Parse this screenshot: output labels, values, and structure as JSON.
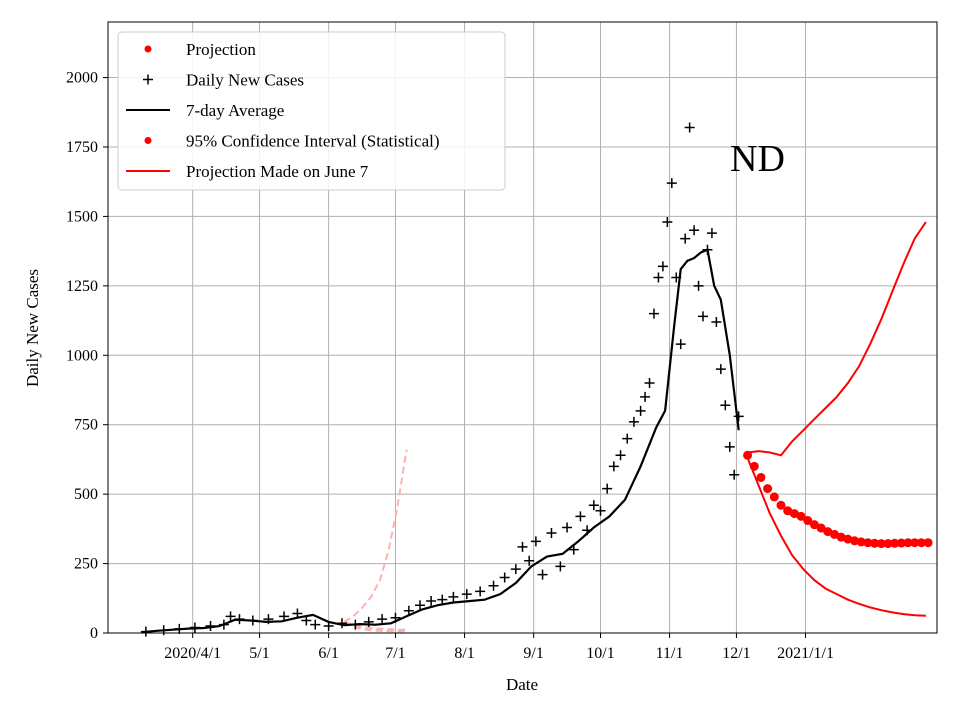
{
  "chart_data": {
    "type": "line",
    "title": "",
    "annotation": "ND",
    "xlabel": "Date",
    "ylabel": "Daily New Cases",
    "grid": true,
    "legend_position": "top-left",
    "x_unit": "days since 2020-01-01",
    "xlim": [
      53,
      425
    ],
    "ylim": [
      0,
      2200
    ],
    "x_ticks": [
      {
        "day": 91,
        "label": "2020/4/1"
      },
      {
        "day": 121,
        "label": "5/1"
      },
      {
        "day": 152,
        "label": "6/1"
      },
      {
        "day": 182,
        "label": "7/1"
      },
      {
        "day": 213,
        "label": "8/1"
      },
      {
        "day": 244,
        "label": "9/1"
      },
      {
        "day": 274,
        "label": "10/1"
      },
      {
        "day": 305,
        "label": "11/1"
      },
      {
        "day": 335,
        "label": "12/1"
      },
      {
        "day": 366,
        "label": "2021/1/1"
      }
    ],
    "y_ticks": [
      0,
      250,
      500,
      750,
      1000,
      1250,
      1500,
      1750,
      2000
    ],
    "legend": [
      {
        "label": "Projection",
        "color": "#ff0000",
        "marker": "dot"
      },
      {
        "label": "Daily New Cases",
        "color": "#000000",
        "marker": "plus"
      },
      {
        "label": "7-day Average",
        "color": "#000000",
        "marker": "line"
      },
      {
        "label": "95% Confidence Interval (Statistical)",
        "color": "#ff0000",
        "marker": "dot"
      },
      {
        "label": "Projection Made on June 7",
        "color": "#ff0000",
        "marker": "line"
      }
    ],
    "series": [
      {
        "name": "7-day Average",
        "color": "#000000",
        "x": [
          68,
          75,
          82,
          89,
          96,
          103,
          110,
          117,
          124,
          131,
          138,
          145,
          152,
          159,
          166,
          173,
          180,
          187,
          194,
          201,
          208,
          215,
          222,
          229,
          236,
          243,
          250,
          257,
          264,
          271,
          278,
          285,
          292,
          299,
          303,
          307,
          310,
          313,
          316,
          319,
          322,
          325,
          328,
          332,
          336
        ],
        "y": [
          3,
          8,
          12,
          16,
          18,
          25,
          48,
          45,
          40,
          42,
          55,
          65,
          40,
          28,
          32,
          30,
          35,
          60,
          85,
          100,
          110,
          115,
          120,
          140,
          180,
          240,
          275,
          285,
          330,
          380,
          420,
          480,
          600,
          740,
          800,
          1100,
          1310,
          1340,
          1350,
          1370,
          1380,
          1250,
          1200,
          1000,
          730
        ]
      },
      {
        "name": "Daily New Cases",
        "color": "#000000",
        "x": [
          70,
          78,
          85,
          92,
          99,
          105,
          108,
          112,
          118,
          125,
          132,
          138,
          142,
          146,
          152,
          158,
          164,
          170,
          176,
          182,
          188,
          193,
          198,
          203,
          208,
          214,
          220,
          226,
          231,
          236,
          239,
          242,
          245,
          248,
          252,
          256,
          259,
          262,
          265,
          268,
          271,
          274,
          277,
          280,
          283,
          286,
          289,
          292,
          294,
          296,
          298,
          300,
          302,
          304,
          306,
          308,
          310,
          312,
          314,
          316,
          318,
          320,
          322,
          324,
          326,
          328,
          330,
          332,
          334,
          336
        ],
        "y": [
          5,
          10,
          15,
          20,
          25,
          30,
          60,
          50,
          45,
          50,
          60,
          70,
          45,
          30,
          25,
          35,
          30,
          40,
          50,
          55,
          80,
          100,
          115,
          120,
          130,
          140,
          150,
          170,
          200,
          230,
          310,
          260,
          330,
          210,
          360,
          240,
          380,
          300,
          420,
          370,
          460,
          440,
          520,
          600,
          640,
          700,
          760,
          800,
          850,
          900,
          1150,
          1280,
          1320,
          1480,
          1620,
          1280,
          1040,
          1420,
          1820,
          1450,
          1250,
          1140,
          1380,
          1440,
          1120,
          950,
          820,
          670,
          570,
          780
        ]
      },
      {
        "name": "Projection",
        "color": "#ff0000",
        "x": [
          340,
          343,
          346,
          349,
          352,
          355,
          358,
          361,
          364,
          367,
          370,
          373,
          376,
          379,
          382,
          385,
          388,
          391,
          394,
          397,
          400,
          403,
          406,
          409,
          412,
          415,
          418,
          421
        ],
        "y": [
          640,
          600,
          560,
          520,
          490,
          460,
          440,
          430,
          420,
          405,
          390,
          378,
          365,
          355,
          345,
          338,
          332,
          328,
          325,
          323,
          322,
          322,
          323,
          324,
          325,
          325,
          325,
          325
        ]
      },
      {
        "name": "95% CI upper",
        "color": "#ff0000",
        "x": [
          340,
          345,
          350,
          355,
          360,
          365,
          370,
          375,
          380,
          385,
          390,
          395,
          400,
          405,
          410,
          415,
          420
        ],
        "y": [
          650,
          655,
          650,
          640,
          690,
          730,
          770,
          810,
          850,
          900,
          960,
          1040,
          1130,
          1230,
          1330,
          1420,
          1480
        ]
      },
      {
        "name": "95% CI lower",
        "color": "#ff0000",
        "x": [
          340,
          345,
          350,
          355,
          360,
          365,
          370,
          375,
          380,
          385,
          390,
          395,
          400,
          405,
          410,
          415,
          420
        ],
        "y": [
          630,
          530,
          430,
          350,
          280,
          230,
          190,
          160,
          140,
          120,
          105,
          92,
          82,
          74,
          68,
          64,
          62
        ]
      },
      {
        "name": "Projection Made on June 7 (central)",
        "color": "#ffb0b0",
        "x": [
          159,
          163,
          167,
          171,
          175,
          179,
          183,
          187
        ],
        "y": [
          40,
          30,
          22,
          18,
          15,
          14,
          12,
          12
        ]
      },
      {
        "name": "Projection Made on June 7 (upper)",
        "color": "#ffb0b0",
        "x": [
          159,
          163,
          167,
          171,
          175,
          179,
          183,
          187
        ],
        "y": [
          40,
          60,
          90,
          130,
          190,
          300,
          460,
          660
        ]
      },
      {
        "name": "Projection Made on June 7 (lower)",
        "color": "#ffb0b0",
        "x": [
          159,
          163,
          167,
          171,
          175,
          179,
          183,
          187
        ],
        "y": [
          40,
          22,
          14,
          10,
          8,
          7,
          6,
          6
        ]
      }
    ]
  }
}
